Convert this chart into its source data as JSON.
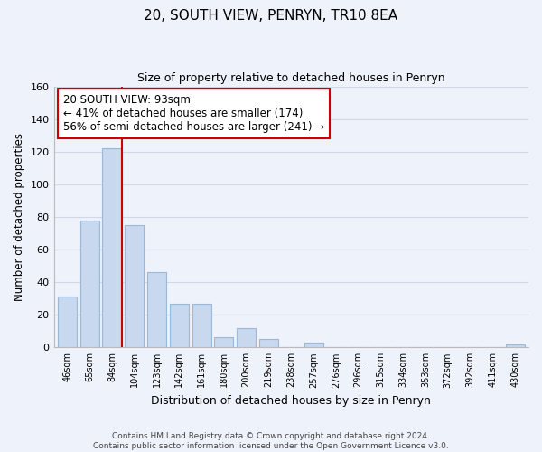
{
  "title": "20, SOUTH VIEW, PENRYN, TR10 8EA",
  "subtitle": "Size of property relative to detached houses in Penryn",
  "xlabel": "Distribution of detached houses by size in Penryn",
  "ylabel": "Number of detached properties",
  "categories": [
    "46sqm",
    "65sqm",
    "84sqm",
    "104sqm",
    "123sqm",
    "142sqm",
    "161sqm",
    "180sqm",
    "200sqm",
    "219sqm",
    "238sqm",
    "257sqm",
    "276sqm",
    "296sqm",
    "315sqm",
    "334sqm",
    "353sqm",
    "372sqm",
    "392sqm",
    "411sqm",
    "430sqm"
  ],
  "values": [
    31,
    78,
    122,
    75,
    46,
    27,
    27,
    6,
    12,
    5,
    0,
    3,
    0,
    0,
    0,
    0,
    0,
    0,
    0,
    0,
    2
  ],
  "bar_color": "#c8d8ee",
  "bar_edge_color": "#9ab8d8",
  "marker_color": "#cc0000",
  "annotation_line1": "20 SOUTH VIEW: 93sqm",
  "annotation_line2": "← 41% of detached houses are smaller (174)",
  "annotation_line3": "56% of semi-detached houses are larger (241) →",
  "annotation_box_color": "#ffffff",
  "annotation_box_edge": "#cc0000",
  "ylim": [
    0,
    160
  ],
  "yticks": [
    0,
    20,
    40,
    60,
    80,
    100,
    120,
    140,
    160
  ],
  "grid_color": "#d0d8e8",
  "bg_color": "#eef2fa",
  "plot_bg_color": "#eef2fa",
  "footer": "Contains HM Land Registry data © Crown copyright and database right 2024.\nContains public sector information licensed under the Open Government Licence v3.0."
}
